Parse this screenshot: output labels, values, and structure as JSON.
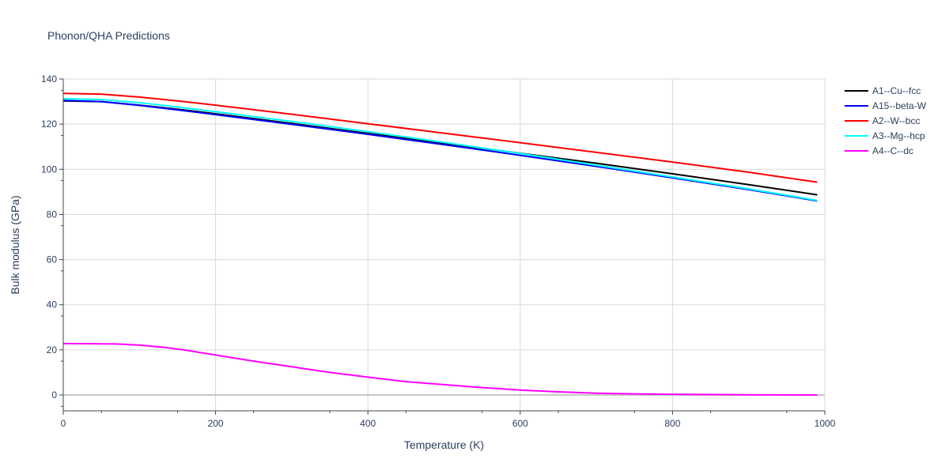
{
  "chart_data": {
    "type": "line",
    "title": "Phonon/QHA Predictions",
    "xlabel": "Temperature (K)",
    "ylabel": "Bulk modulus (GPa)",
    "xlim": [
      0,
      1000
    ],
    "ylim": [
      -7,
      140
    ],
    "xticks": [
      0,
      200,
      400,
      600,
      800,
      1000
    ],
    "xtick_labels": [
      "0",
      "200",
      "400",
      "600",
      "800",
      "1000"
    ],
    "yticks": [
      0,
      20,
      40,
      60,
      80,
      100,
      120,
      140
    ],
    "ytick_labels": [
      "0",
      "20",
      "40",
      "60",
      "80",
      "100",
      "120",
      "140"
    ],
    "grid": true,
    "legend_position": "right",
    "series": [
      {
        "name": "A1--Cu--fcc",
        "color": "#000000",
        "x": [
          0,
          50,
          100,
          150,
          200,
          300,
          400,
          500,
          600,
          700,
          800,
          900,
          990
        ],
        "y": [
          130.3,
          130.0,
          128.4,
          126.6,
          124.6,
          120.3,
          115.9,
          111.5,
          107.1,
          102.7,
          98.0,
          93.2,
          88.7
        ]
      },
      {
        "name": "A15--beta-W",
        "color": "#0000ff",
        "x": [
          0,
          50,
          100,
          150,
          200,
          300,
          400,
          500,
          600,
          700,
          800,
          900,
          990
        ],
        "y": [
          130.5,
          130.0,
          128.3,
          126.3,
          124.2,
          119.9,
          115.5,
          110.9,
          106.2,
          101.3,
          96.2,
          91.0,
          86.0
        ]
      },
      {
        "name": "A2--W--bcc",
        "color": "#ff0000",
        "x": [
          0,
          50,
          100,
          150,
          200,
          300,
          400,
          500,
          600,
          700,
          800,
          900,
          990
        ],
        "y": [
          133.6,
          133.3,
          132.0,
          130.3,
          128.4,
          124.4,
          120.2,
          116.0,
          111.8,
          107.5,
          103.2,
          98.7,
          94.3
        ]
      },
      {
        "name": "A3--Mg--hcp",
        "color": "#00ffff",
        "x": [
          0,
          50,
          100,
          150,
          200,
          300,
          400,
          500,
          600,
          700,
          800,
          900,
          990
        ],
        "y": [
          131.3,
          130.9,
          129.5,
          127.6,
          125.5,
          121.2,
          116.7,
          111.9,
          107.0,
          101.8,
          96.6,
          91.3,
          86.2
        ]
      },
      {
        "name": "A4--C--dc",
        "color": "#ff00ff",
        "x": [
          0,
          40,
          70,
          100,
          130,
          160,
          200,
          250,
          300,
          350,
          400,
          450,
          500,
          550,
          600,
          650,
          700,
          750,
          800,
          850,
          900,
          950,
          990
        ],
        "y": [
          22.8,
          22.7,
          22.6,
          22.1,
          21.2,
          19.9,
          17.7,
          15.0,
          12.5,
          10.0,
          7.9,
          5.9,
          4.6,
          3.3,
          2.2,
          1.4,
          0.8,
          0.5,
          0.3,
          0.2,
          0.1,
          0.05,
          0.0
        ]
      }
    ]
  }
}
